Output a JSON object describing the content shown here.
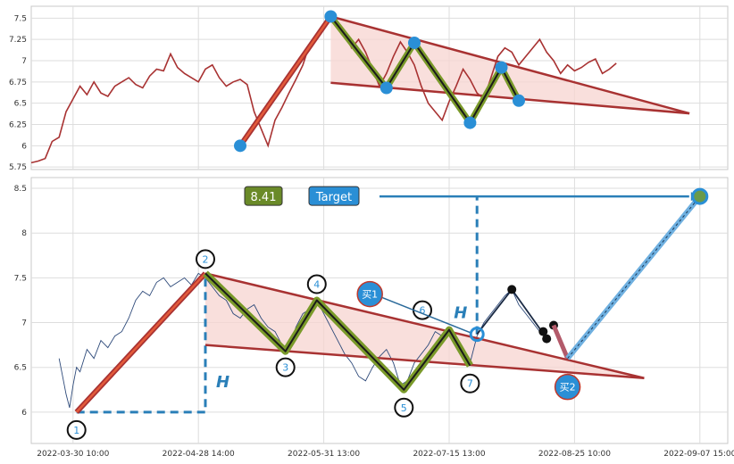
{
  "chart_data": [
    {
      "type": "line",
      "panel": "top",
      "yticks": [
        5.75,
        6.0,
        6.25,
        6.5,
        6.75,
        7.0,
        7.25,
        7.5
      ],
      "ylim": [
        5.72,
        7.64
      ],
      "xlim": [
        0,
        100
      ],
      "grid": true,
      "price_series": {
        "x": [
          0,
          1,
          2,
          3,
          4,
          5,
          6,
          7,
          8,
          9,
          10,
          11,
          12,
          13,
          14,
          15,
          16,
          17,
          18,
          19,
          20,
          21,
          22,
          23,
          24,
          25,
          26,
          27,
          28,
          29,
          30,
          31,
          32,
          33,
          34,
          35,
          36,
          37,
          38,
          39,
          40,
          41,
          42,
          43,
          44,
          45,
          46,
          47,
          48,
          49,
          50,
          51,
          52,
          53,
          54,
          55,
          56,
          57,
          58,
          59,
          60,
          61,
          62,
          63,
          64,
          65,
          66,
          67,
          68,
          69,
          70,
          71,
          72,
          73,
          74,
          75,
          76,
          77,
          78,
          79,
          80,
          81,
          82,
          83,
          84
        ],
        "y": [
          5.8,
          5.82,
          5.85,
          6.05,
          6.1,
          6.4,
          6.55,
          6.7,
          6.6,
          6.75,
          6.62,
          6.58,
          6.7,
          6.75,
          6.8,
          6.72,
          6.68,
          6.82,
          6.9,
          6.88,
          7.08,
          6.92,
          6.85,
          6.8,
          6.75,
          6.9,
          6.95,
          6.8,
          6.7,
          6.75,
          6.78,
          6.72,
          6.4,
          6.2,
          6.0,
          6.3,
          6.45,
          6.62,
          6.78,
          6.95,
          7.2,
          7.3,
          7.4,
          7.55,
          7.45,
          7.3,
          7.15,
          7.25,
          7.1,
          6.9,
          6.7,
          6.85,
          7.05,
          7.22,
          7.1,
          6.95,
          6.7,
          6.5,
          6.4,
          6.3,
          6.52,
          6.7,
          6.9,
          6.78,
          6.62,
          6.55,
          6.8,
          7.05,
          7.15,
          7.1,
          6.95,
          7.05,
          7.15,
          7.25,
          7.1,
          7.0,
          6.85,
          6.95,
          6.88,
          6.92,
          6.98,
          7.02,
          6.85,
          6.9,
          6.97
        ]
      },
      "pattern_points": [
        {
          "x": 30.0,
          "y": 6.0
        },
        {
          "x": 43.0,
          "y": 7.52
        },
        {
          "x": 51.0,
          "y": 6.68
        },
        {
          "x": 55.0,
          "y": 7.21
        },
        {
          "x": 63.0,
          "y": 6.27
        },
        {
          "x": 67.5,
          "y": 6.92
        },
        {
          "x": 70.0,
          "y": 6.53
        }
      ],
      "upper_trendline": {
        "x": [
          43.0,
          94.5
        ],
        "y": [
          7.52,
          6.38
        ]
      },
      "lower_trendline": {
        "x": [
          43.0,
          94.5
        ],
        "y": [
          6.74,
          6.38
        ]
      }
    },
    {
      "type": "line",
      "panel": "bottom",
      "yticks": [
        6.0,
        6.5,
        7.0,
        7.5,
        8.0,
        8.5
      ],
      "ylim": [
        5.65,
        8.62
      ],
      "xlim": [
        0,
        100
      ],
      "xticks": [
        {
          "x": 6.0,
          "label": "2022-03-30 10:00"
        },
        {
          "x": 24.0,
          "label": "2022-04-28 14:00"
        },
        {
          "x": 42.0,
          "label": "2022-05-31 13:00"
        },
        {
          "x": 60.0,
          "label": "2022-07-15 13:00"
        },
        {
          "x": 78.0,
          "label": "2022-08-25 10:00"
        },
        {
          "x": 96.0,
          "label": "2022-09-07 15:00"
        }
      ],
      "grid": true,
      "pivots": [
        {
          "label": "1",
          "x": 6.5,
          "y": 6.0
        },
        {
          "label": "2",
          "x": 25.0,
          "y": 7.55
        },
        {
          "label": "3",
          "x": 36.5,
          "y": 6.68
        },
        {
          "label": "4",
          "x": 41.0,
          "y": 7.25
        },
        {
          "label": "5",
          "x": 53.5,
          "y": 6.25
        },
        {
          "label": "6",
          "x": 60.0,
          "y": 6.92
        },
        {
          "label": "7",
          "x": 63.0,
          "y": 6.52
        }
      ],
      "upper_trendline": {
        "x": [
          25.0,
          88.0
        ],
        "y": [
          7.55,
          6.38
        ]
      },
      "lower_trendline": {
        "x": [
          25.0,
          88.0
        ],
        "y": [
          6.75,
          6.38
        ]
      },
      "height_H": {
        "x": 25.0,
        "from": 6.0,
        "to": 7.55,
        "label": "H"
      },
      "breakout_H": {
        "x": 64.0,
        "from": 6.87,
        "to": 8.42,
        "label": "H"
      },
      "buy1": {
        "label": "买1",
        "x": 64.0,
        "y": 6.87
      },
      "buy2": {
        "label": "买2",
        "x": 77.0,
        "y": 6.6
      },
      "price_label": "8.41",
      "target_label": "Target",
      "target_point": {
        "x": 96.0,
        "y": 8.41
      },
      "post_path": {
        "x": [
          64.0,
          69.0,
          73.5
        ],
        "y": [
          6.87,
          7.37,
          6.88
        ]
      },
      "black_dots": [
        {
          "x": 69.0,
          "y": 7.37
        },
        {
          "x": 73.5,
          "y": 6.9
        },
        {
          "x": 74.0,
          "y": 6.82
        },
        {
          "x": 75.0,
          "y": 6.97
        }
      ],
      "price_series": {
        "x": [
          4.0,
          4.5,
          5.0,
          5.5,
          6.0,
          6.5,
          7.0,
          8.0,
          9.0,
          10.0,
          11.0,
          12.0,
          13.0,
          14.0,
          15.0,
          16.0,
          17.0,
          18.0,
          19.0,
          20.0,
          21.0,
          22.0,
          23.0,
          24.0,
          25.0,
          26.0,
          27.0,
          28.0,
          29.0,
          30.0,
          31.0,
          32.0,
          33.0,
          34.0,
          35.0,
          36.0,
          37.0,
          38.0,
          39.0,
          40.0,
          41.0,
          42.0,
          43.0,
          44.0,
          45.0,
          46.0,
          47.0,
          48.0,
          49.0,
          50.0,
          51.0,
          52.0,
          53.0,
          54.0,
          55.0,
          56.0,
          57.0,
          58.0,
          59.0,
          60.0,
          61.0,
          62.0,
          63.0,
          64.0,
          65.0,
          66.0,
          67.0,
          68.0,
          69.0,
          70.0,
          71.0,
          72.0,
          73.0
        ],
        "y": [
          6.6,
          6.4,
          6.2,
          6.05,
          6.3,
          6.5,
          6.45,
          6.7,
          6.6,
          6.8,
          6.72,
          6.85,
          6.9,
          7.05,
          7.25,
          7.35,
          7.3,
          7.45,
          7.5,
          7.4,
          7.45,
          7.5,
          7.42,
          7.55,
          7.5,
          7.4,
          7.3,
          7.25,
          7.1,
          7.05,
          7.15,
          7.2,
          7.05,
          6.95,
          6.9,
          6.75,
          6.7,
          6.95,
          7.1,
          7.15,
          7.25,
          7.1,
          6.95,
          6.8,
          6.65,
          6.55,
          6.4,
          6.35,
          6.5,
          6.62,
          6.7,
          6.55,
          6.3,
          6.35,
          6.55,
          6.65,
          6.75,
          6.9,
          6.85,
          6.95,
          6.8,
          6.7,
          6.55,
          6.85,
          7.0,
          7.1,
          7.2,
          7.3,
          7.37,
          7.2,
          7.1,
          7.0,
          6.9
        ]
      }
    }
  ],
  "colors": {
    "price_line_top": "#a83232",
    "price_line_bottom": "#2e4a7a",
    "trendline": "#a83232",
    "fill": "#f7d4d0",
    "zigzag_outer": "#7a9a2a",
    "zigzag_inner": "#1a1a1a",
    "impulse": "#cc3a2a",
    "marker": "#2a8fd6",
    "target_line": "#2a7fb8",
    "price_box": "#6a8a28",
    "target_box": "#2a8fd6"
  }
}
